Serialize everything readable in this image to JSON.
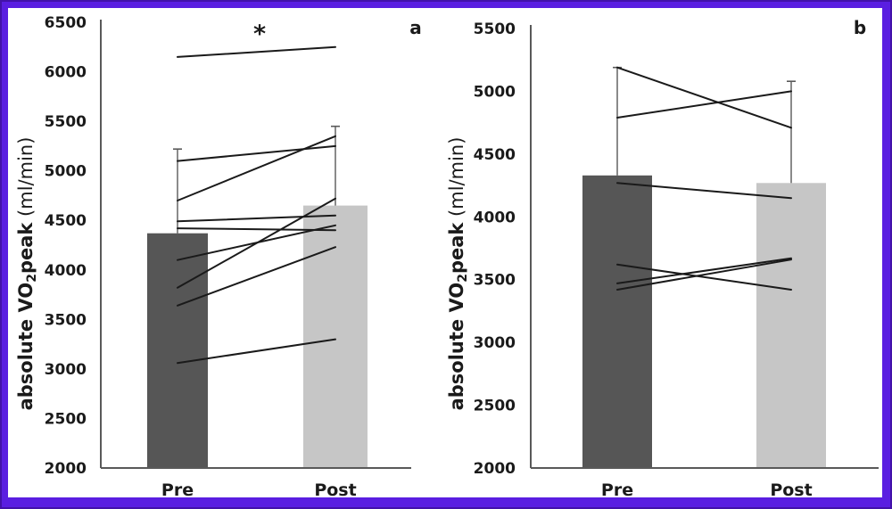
{
  "figure": {
    "background": "#ffffff",
    "border_color": "#5a1ee1",
    "border_edge_color": "#4312a8",
    "text_color": "#1a1a1a",
    "axis_color": "#595959",
    "line_color": "#1a1a1a"
  },
  "chart_data": [
    {
      "panel_label": "a",
      "type": "bar",
      "subtype": "pre-post bars with paired individual subject lines",
      "categories": [
        "Pre",
        "Post"
      ],
      "ylabel": {
        "bold_prefix": "absolute VO",
        "subscript": "2",
        "bold_suffix": "peak",
        "regular_suffix": " (ml/min)"
      },
      "ylim": [
        2000,
        6500
      ],
      "ytick_labels": [
        "6500",
        "6000",
        "5500",
        "5000",
        "4500",
        "4000",
        "3500",
        "3000",
        "2500",
        "2000"
      ],
      "bar_means": [
        4370,
        4650
      ],
      "bar_error_tops": [
        5220,
        5450
      ],
      "bar_colors": [
        "#565656",
        "#c6c6c6"
      ],
      "subject_lines_pre_post": [
        [
          6150,
          6250
        ],
        [
          5100,
          5250
        ],
        [
          4700,
          5350
        ],
        [
          4490,
          4550
        ],
        [
          4420,
          4400
        ],
        [
          4100,
          4450
        ],
        [
          3820,
          4720
        ],
        [
          3640,
          4230
        ],
        [
          3060,
          3300
        ]
      ],
      "significance_marker": "*",
      "grid": false,
      "legend": "none"
    },
    {
      "panel_label": "b",
      "type": "bar",
      "subtype": "pre-post bars with paired individual subject lines",
      "categories": [
        "Pre",
        "Post"
      ],
      "ylabel": {
        "bold_prefix": "absolute VO",
        "subscript": "2",
        "bold_suffix": "peak",
        "regular_suffix": " (ml/min)"
      },
      "ylim": [
        2000,
        5500
      ],
      "ytick_labels": [
        "5500",
        "5000",
        "4500",
        "4000",
        "3500",
        "3000",
        "2500",
        "2000"
      ],
      "bar_means": [
        4330,
        4270
      ],
      "bar_error_tops": [
        5190,
        5080
      ],
      "bar_colors": [
        "#565656",
        "#c6c6c6"
      ],
      "subject_lines_pre_post": [
        [
          5190,
          4710
        ],
        [
          4790,
          5000
        ],
        [
          4270,
          4150
        ],
        [
          3620,
          3420
        ],
        [
          3470,
          3670
        ],
        [
          3420,
          3660
        ]
      ],
      "significance_marker": null,
      "grid": false,
      "legend": "none"
    }
  ]
}
